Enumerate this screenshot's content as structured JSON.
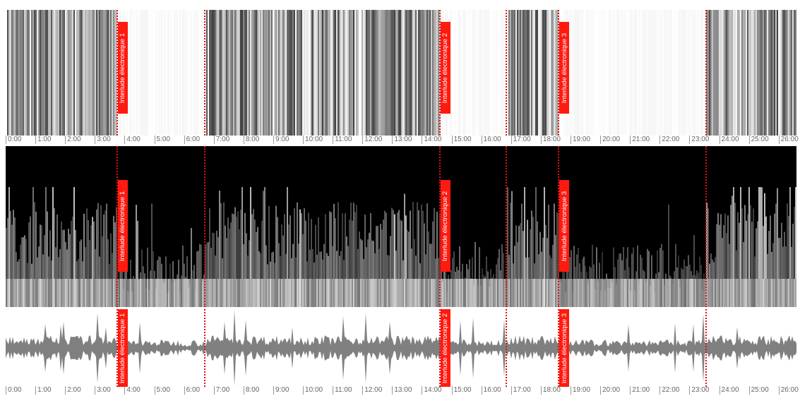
{
  "time_axis": {
    "labels": [
      "0:00",
      "1:00",
      "2:00",
      "3:00",
      "4:00",
      "5:00",
      "6:00",
      "7:00",
      "8:00",
      "9:00",
      "10:00",
      "11:00",
      "12:00",
      "13:00",
      "14:00",
      "15:00",
      "16:00",
      "17:00",
      "18:00",
      "19:00",
      "20:00",
      "21:00",
      "22:00",
      "23:00",
      "24:00",
      "25:00",
      "26:00"
    ],
    "minutes": [
      0,
      1,
      2,
      3,
      4,
      5,
      6,
      7,
      8,
      9,
      10,
      11,
      12,
      13,
      14,
      15,
      16,
      17,
      18,
      19,
      20,
      21,
      22,
      23,
      24,
      25,
      26
    ],
    "duration_min": 26.6
  },
  "section_boundaries_min": [
    3.75,
    6.7,
    14.6,
    16.85,
    18.6,
    23.55
  ],
  "markers": [
    {
      "label": "Interlude électronique 1",
      "time_min": 3.75
    },
    {
      "label": "Interlude électronique 2",
      "time_min": 14.6
    },
    {
      "label": "Interlude électronique 3",
      "time_min": 18.6
    }
  ],
  "colors": {
    "marker": "#ff1a10",
    "spectrogram_bg": "#000000",
    "waveform": "#808080"
  },
  "segments": [
    {
      "start_min": 0,
      "end_min": 3.75,
      "kind": "music"
    },
    {
      "start_min": 3.75,
      "end_min": 6.7,
      "kind": "interlude"
    },
    {
      "start_min": 6.7,
      "end_min": 14.6,
      "kind": "music"
    },
    {
      "start_min": 14.6,
      "end_min": 16.85,
      "kind": "interlude"
    },
    {
      "start_min": 16.85,
      "end_min": 18.6,
      "kind": "music"
    },
    {
      "start_min": 18.6,
      "end_min": 23.55,
      "kind": "interlude"
    },
    {
      "start_min": 23.55,
      "end_min": 26.6,
      "kind": "music"
    }
  ]
}
